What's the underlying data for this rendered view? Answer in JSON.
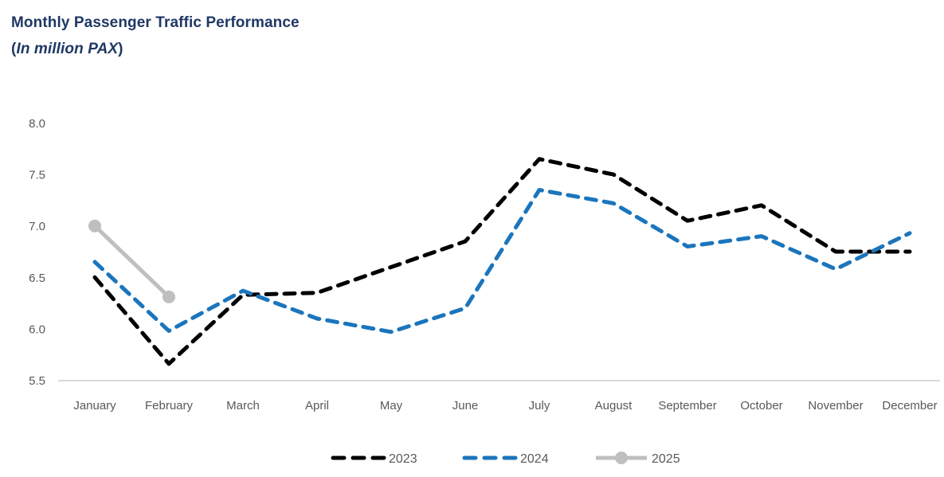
{
  "title": {
    "line1": "Monthly Passenger Traffic Performance",
    "line2_open": "(",
    "line2_italic": "In million PAX",
    "line2_close": ")"
  },
  "colors": {
    "title_text": "#1F3864",
    "axis_line": "#D9D9D9",
    "axis_text": "#595959",
    "legend_text": "#595959",
    "series_2023": "#000000",
    "series_2024": "#1B75BC",
    "series_2025": "#BFBFBF"
  },
  "chart_data": {
    "type": "line",
    "title": "Monthly Passenger Traffic Performance (In million PAX)",
    "xlabel": "",
    "ylabel": "",
    "ylim": [
      5.5,
      8.0
    ],
    "ytick_step": 0.5,
    "yticks": [
      "8.0",
      "7.5",
      "7.0",
      "6.5",
      "6.0",
      "5.5"
    ],
    "grid": false,
    "legend_position": "bottom",
    "categories": [
      "January",
      "February",
      "March",
      "April",
      "May",
      "June",
      "July",
      "August",
      "September",
      "October",
      "November",
      "December"
    ],
    "series": [
      {
        "name": "2023",
        "style": "dashed",
        "color_key": "series_2023",
        "values": [
          6.5,
          5.66,
          6.33,
          6.35,
          6.6,
          6.85,
          7.65,
          7.5,
          7.05,
          7.2,
          6.75,
          6.75
        ]
      },
      {
        "name": "2024",
        "style": "dashed",
        "color_key": "series_2024",
        "values": [
          6.65,
          5.98,
          6.37,
          6.1,
          5.97,
          6.2,
          7.35,
          7.22,
          6.8,
          6.9,
          6.58,
          6.93
        ]
      },
      {
        "name": "2025",
        "style": "solid-marker",
        "color_key": "series_2025",
        "values": [
          7.0,
          6.31,
          null,
          null,
          null,
          null,
          null,
          null,
          null,
          null,
          null,
          null
        ]
      }
    ]
  }
}
